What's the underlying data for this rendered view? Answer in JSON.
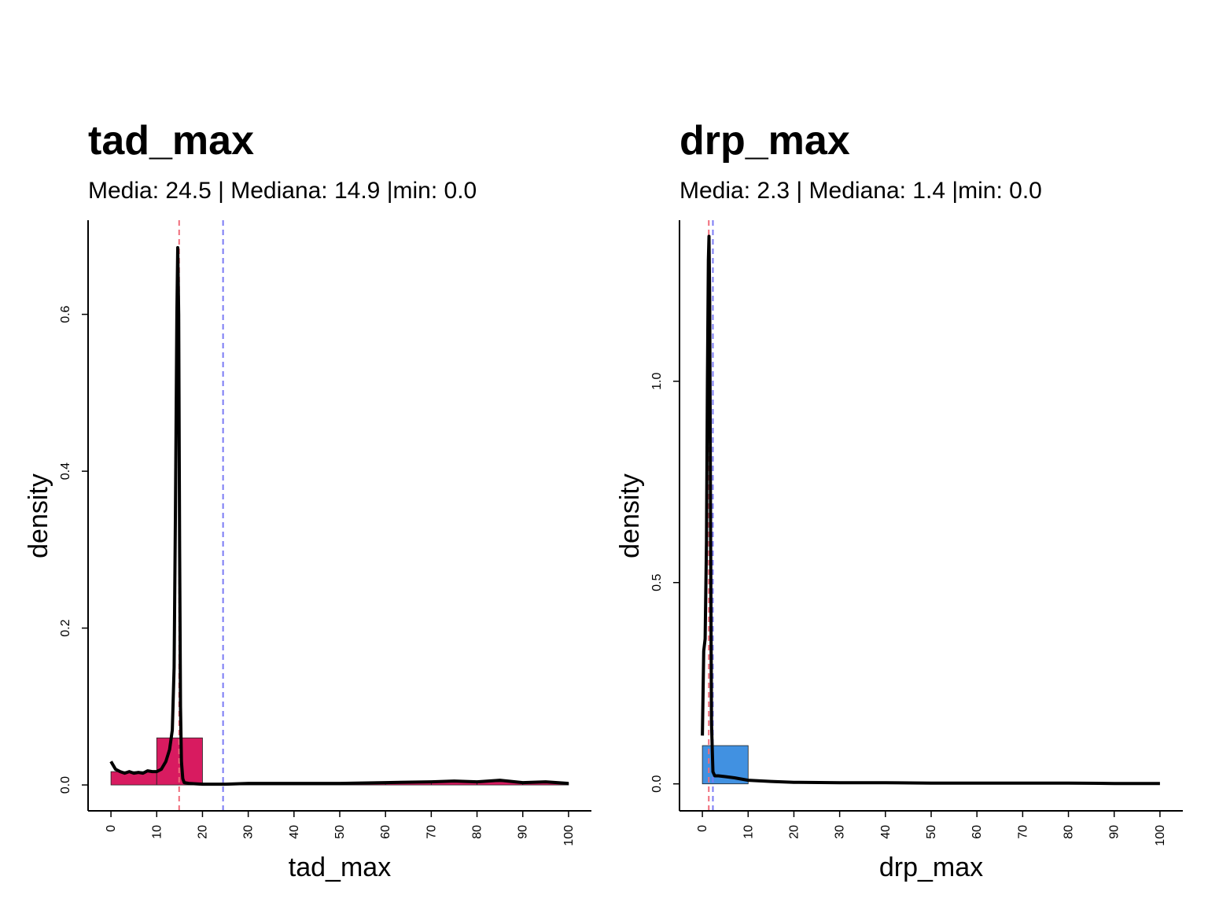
{
  "chart_data": [
    {
      "id": "left",
      "type": "histogram",
      "title": "tad_max",
      "subtitle": "Media: 24.5 | Mediana: 14.9 |min: 0.0",
      "xlabel": "tad_max",
      "ylabel": "density",
      "xlim": [
        -5,
        105
      ],
      "ylim": [
        -0.033,
        0.72
      ],
      "xticks": [
        0,
        10,
        20,
        30,
        40,
        50,
        60,
        70,
        80,
        90,
        100
      ],
      "yticks": [
        0.0,
        0.2,
        0.4,
        0.6
      ],
      "ytick_labels": [
        "0.0",
        "0.2",
        "0.4",
        "0.6"
      ],
      "bar_color": "#D81B60",
      "bins": [
        {
          "x0": 0,
          "x1": 10,
          "density": 0.017
        },
        {
          "x0": 10,
          "x1": 20,
          "density": 0.06
        },
        {
          "x0": 20,
          "x1": 30,
          "density": 0.002
        },
        {
          "x0": 30,
          "x1": 40,
          "density": 0.002
        },
        {
          "x0": 40,
          "x1": 50,
          "density": 0.002
        },
        {
          "x0": 50,
          "x1": 60,
          "density": 0.002
        },
        {
          "x0": 60,
          "x1": 70,
          "density": 0.003
        },
        {
          "x0": 70,
          "x1": 80,
          "density": 0.004
        },
        {
          "x0": 80,
          "x1": 90,
          "density": 0.004
        },
        {
          "x0": 90,
          "x1": 100,
          "density": 0.003
        }
      ],
      "density_curve": {
        "x": [
          0,
          1,
          2,
          3,
          4,
          5,
          6,
          7,
          8,
          9,
          10,
          11,
          12,
          12.8,
          13.4,
          13.8,
          14.1,
          14.4,
          14.6,
          14.8,
          15.0,
          15.2,
          15.4,
          15.7,
          16.0,
          17,
          20,
          25,
          30,
          40,
          50,
          60,
          70,
          75,
          80,
          85,
          90,
          95,
          100
        ],
        "y": [
          0.03,
          0.02,
          0.017,
          0.015,
          0.017,
          0.015,
          0.016,
          0.015,
          0.018,
          0.017,
          0.017,
          0.02,
          0.03,
          0.045,
          0.07,
          0.15,
          0.35,
          0.6,
          0.685,
          0.6,
          0.3,
          0.1,
          0.03,
          0.008,
          0.003,
          0.002,
          0.001,
          0.001,
          0.002,
          0.002,
          0.002,
          0.003,
          0.004,
          0.005,
          0.004,
          0.006,
          0.003,
          0.004,
          0.002
        ]
      },
      "vlines": [
        {
          "x": 14.9,
          "color": "#F06C7A"
        },
        {
          "x": 24.5,
          "color": "#7B7BF5"
        }
      ]
    },
    {
      "id": "right",
      "type": "histogram",
      "title": "drp_max",
      "subtitle": "Media: 2.3 | Mediana: 1.4 |min: 0.0",
      "xlabel": "drp_max",
      "ylabel": "density",
      "xlim": [
        -5,
        105
      ],
      "ylim": [
        -0.067,
        1.4
      ],
      "xticks": [
        0,
        10,
        20,
        30,
        40,
        50,
        60,
        70,
        80,
        90,
        100
      ],
      "yticks": [
        0.0,
        0.5,
        1.0
      ],
      "ytick_labels": [
        "0.0",
        "0.5",
        "1.0"
      ],
      "bar_color": "#4191E1",
      "bins": [
        {
          "x0": 0,
          "x1": 10,
          "density": 0.095
        }
      ],
      "density_curve": {
        "x": [
          0,
          0.3,
          0.6,
          0.9,
          1.1,
          1.3,
          1.45,
          1.6,
          1.8,
          2.0,
          2.3,
          2.7,
          3.5,
          5,
          7,
          10,
          15,
          20,
          30,
          40,
          50,
          60,
          70,
          80,
          90,
          100
        ],
        "y": [
          0.12,
          0.33,
          0.36,
          0.6,
          1.0,
          1.3,
          1.36,
          1.2,
          0.6,
          0.15,
          0.03,
          0.02,
          0.02,
          0.018,
          0.015,
          0.009,
          0.006,
          0.004,
          0.003,
          0.003,
          0.002,
          0.002,
          0.002,
          0.002,
          0.001,
          0.001
        ]
      },
      "vlines": [
        {
          "x": 1.4,
          "color": "#F06C7A"
        },
        {
          "x": 2.3,
          "color": "#7B7BF5"
        }
      ]
    }
  ]
}
